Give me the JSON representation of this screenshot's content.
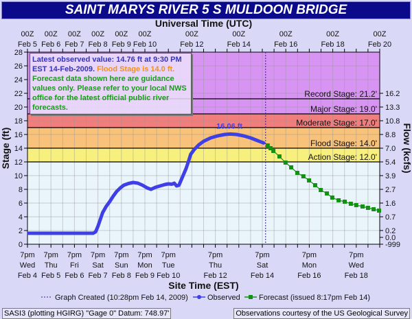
{
  "title": "SAINT MARYS RIVER 5 S MULDOON BRIDGE",
  "info": {
    "latest": "Latest observed value: 14.76 ft at 9:30 PM EST 14-Feb-2009.",
    "flood": "Flood Stage is 14.0 ft.",
    "disclaimer": "Forecast data shown here are guidance values only. Please refer to your local NWS office for the latest official public river forecasts."
  },
  "footer": {
    "left": "SASI3 (plotting HGIRG)  \"Gage 0\" Datum: 748.97'",
    "right": "Observations courtesy of the  US Geological Survey"
  },
  "colors": {
    "observed": "#3f3fe6",
    "forecast": "#139113",
    "record": "#d894f2",
    "major": "#d894f2",
    "moderate": "#f27d7d",
    "flood": "#f8c27a",
    "action": "#f7f07e",
    "normal": "#e9f4fb",
    "title_bg": "#0a0a8a"
  },
  "chart_data": {
    "type": "line",
    "title": "SAINT MARYS RIVER 5 S MULDOON BRIDGE",
    "top_xlabel": "Universal Time (UTC)",
    "xlabel": "Site Time (EST)",
    "ylabel": "Stage (ft)",
    "y2label": "Flow (kcfs)",
    "x_units": "days since 00Z Feb 5 2009",
    "xlim": [
      0,
      15
    ],
    "ylim": [
      0,
      28
    ],
    "grid": true,
    "yticks": [
      0,
      2,
      4,
      6,
      8,
      10,
      12,
      14,
      16,
      18,
      20,
      22,
      24,
      26,
      28
    ],
    "top_ticks": [
      {
        "x": 0,
        "l1": "00Z",
        "l2": "Feb 5"
      },
      {
        "x": 1,
        "l1": "00Z",
        "l2": "Feb 6"
      },
      {
        "x": 2,
        "l1": "00Z",
        "l2": "Feb 7"
      },
      {
        "x": 3,
        "l1": "00Z",
        "l2": "Feb 8"
      },
      {
        "x": 4,
        "l1": "00Z",
        "l2": "Feb 9"
      },
      {
        "x": 5,
        "l1": "00Z",
        "l2": "Feb 10"
      },
      {
        "x": 7,
        "l1": "00Z",
        "l2": "Feb 12"
      },
      {
        "x": 9,
        "l1": "00Z",
        "l2": "Feb 14"
      },
      {
        "x": 11,
        "l1": "00Z",
        "l2": "Feb 16"
      },
      {
        "x": 13,
        "l1": "00Z",
        "l2": "Feb 18"
      },
      {
        "x": 15,
        "l1": "00Z",
        "l2": "Feb 20"
      }
    ],
    "bottom_ticks": [
      {
        "x": 0,
        "l1": "7pm",
        "l2": "Wed",
        "l3": "Feb 4"
      },
      {
        "x": 1,
        "l1": "7pm",
        "l2": "Thu",
        "l3": "Feb 5"
      },
      {
        "x": 2,
        "l1": "7pm",
        "l2": "Fri",
        "l3": "Feb 6"
      },
      {
        "x": 3,
        "l1": "7pm",
        "l2": "Sat",
        "l3": "Feb 7"
      },
      {
        "x": 4,
        "l1": "7pm",
        "l2": "Sun",
        "l3": "Feb 8"
      },
      {
        "x": 5,
        "l1": "7pm",
        "l2": "Mon",
        "l3": "Feb 9"
      },
      {
        "x": 6,
        "l1": "7pm",
        "l2": "Tue",
        "l3": "Feb 10"
      },
      {
        "x": 8,
        "l1": "7pm",
        "l2": "Thu",
        "l3": "Feb 12"
      },
      {
        "x": 10,
        "l1": "7pm",
        "l2": "Sat",
        "l3": "Feb 14"
      },
      {
        "x": 12,
        "l1": "7pm",
        "l2": "Mon",
        "l3": "Feb 16"
      },
      {
        "x": 14,
        "l1": "7pm",
        "l2": "Wed",
        "l3": "Feb 18"
      }
    ],
    "flow_ticks": [
      {
        "stage": 22,
        "label": "16.2"
      },
      {
        "stage": 20,
        "label": "13.3"
      },
      {
        "stage": 18,
        "label": "10.8"
      },
      {
        "stage": 16,
        "label": "8.8"
      },
      {
        "stage": 14,
        "label": "7.0"
      },
      {
        "stage": 12,
        "label": "5.4"
      },
      {
        "stage": 10,
        "label": "3.9"
      },
      {
        "stage": 8,
        "label": "2.7"
      },
      {
        "stage": 6,
        "label": "1.6"
      },
      {
        "stage": 4,
        "label": "0.7"
      },
      {
        "stage": 2,
        "label": "0.2"
      },
      {
        "stage": 1,
        "label": "0.0"
      },
      {
        "stage": 0,
        "label": "-999"
      }
    ],
    "stages": [
      {
        "name": "record",
        "label": "Record Stage: 21.2'",
        "value": 21.2
      },
      {
        "name": "major",
        "label": "Major Stage: 19.0'",
        "value": 19.0
      },
      {
        "name": "moderate",
        "label": "Moderate Stage: 17.0'",
        "value": 17.0
      },
      {
        "name": "flood",
        "label": "Flood Stage: 14.0'",
        "value": 14.0
      },
      {
        "name": "action",
        "label": "Action Stage: 12.0'",
        "value": 12.0
      }
    ],
    "graph_created_x": 10.14,
    "peak_label": "16.06 ft",
    "peak": [
      8.63,
      16.06
    ],
    "series": [
      {
        "name": "Observed",
        "x": [
          0.05,
          0.5,
          1,
          1.5,
          2,
          2.5,
          2.8,
          2.9,
          3.0,
          3.1,
          3.2,
          3.35,
          3.5,
          3.65,
          3.8,
          3.95,
          4.1,
          4.3,
          4.5,
          4.7,
          4.9,
          5.1,
          5.26,
          5.45,
          5.65,
          5.85,
          6.0,
          6.15,
          6.25,
          6.35,
          6.45,
          6.6,
          6.75,
          6.85,
          6.95,
          7.1,
          7.3,
          7.5,
          7.8,
          8.1,
          8.4,
          8.63,
          8.9,
          9.2,
          9.5,
          9.8,
          10.06
        ],
        "y": [
          1.6,
          1.6,
          1.6,
          1.6,
          1.6,
          1.6,
          1.6,
          1.8,
          2.6,
          3.6,
          4.6,
          5.5,
          6.2,
          7.0,
          7.7,
          8.2,
          8.6,
          8.85,
          9.0,
          8.9,
          8.6,
          8.2,
          8.0,
          8.3,
          8.5,
          8.7,
          8.8,
          8.75,
          8.9,
          8.5,
          8.6,
          9.8,
          11.0,
          12.0,
          13.1,
          13.8,
          14.5,
          15.0,
          15.5,
          15.8,
          16.0,
          16.06,
          16.0,
          15.8,
          15.5,
          15.1,
          14.76
        ]
      },
      {
        "name": "Forecast (issued 8:17pm Feb 14)",
        "x": [
          10.23,
          10.35,
          10.47,
          10.73,
          10.99,
          11.23,
          11.49,
          11.75,
          11.99,
          12.25,
          12.49,
          12.75,
          12.98,
          13.25,
          13.51,
          13.77,
          14.0,
          14.27,
          14.5,
          14.74,
          14.97
        ],
        "y": [
          14.4,
          14.0,
          13.6,
          12.8,
          11.9,
          11.2,
          10.4,
          9.9,
          9.3,
          8.6,
          7.9,
          7.4,
          6.8,
          6.4,
          6.2,
          5.9,
          5.7,
          5.5,
          5.3,
          5.1,
          4.9
        ]
      }
    ],
    "legend": {
      "created": "Graph Created (10:28pm Feb 14, 2009)",
      "observed": "Observed",
      "forecast": "Forecast (issued 8:17pm Feb 14)",
      "placement": "bottom"
    }
  }
}
